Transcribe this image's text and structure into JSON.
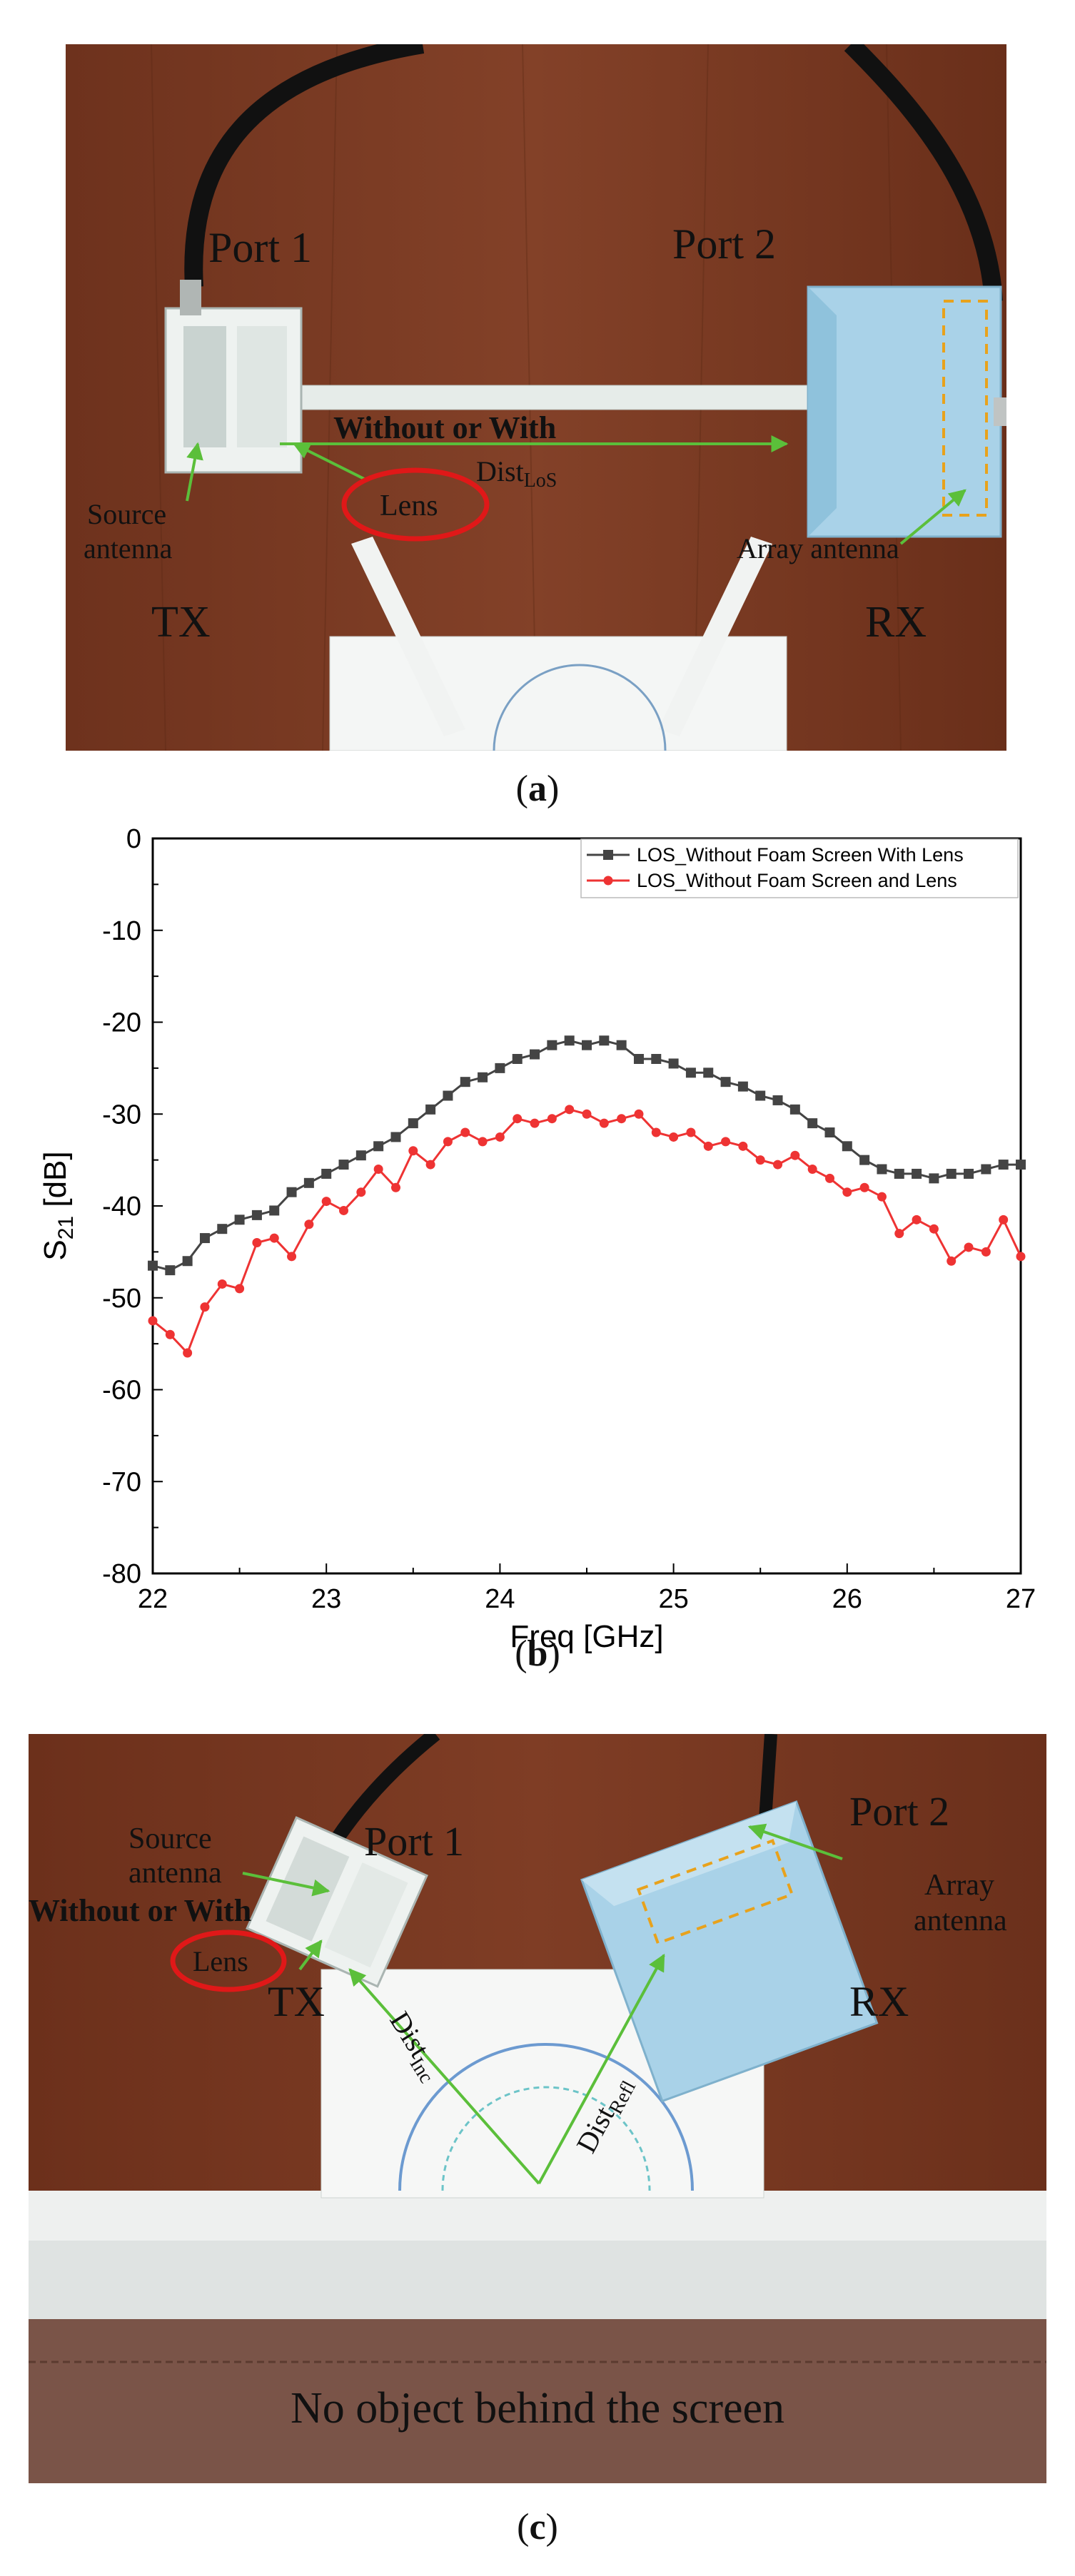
{
  "panel_a": {
    "caption_open": "(",
    "caption_letter": "a",
    "caption_close": ")",
    "labels": {
      "port1": "Port 1",
      "port2": "Port 2",
      "without_or_with": "Without or With",
      "dist_main": "Dist",
      "dist_sub": "LoS",
      "source1": "Source",
      "source2": "antenna",
      "lens": "Lens",
      "array": "Array antenna",
      "tx": "TX",
      "rx": "RX"
    },
    "colors": {
      "wood": "#7a3b22",
      "arrow": "#5bbf3a",
      "lens_ring": "#e01818",
      "dashed": "#e8a21c"
    }
  },
  "panel_b": {
    "caption_open": "(",
    "caption_letter": "b",
    "caption_close": ")"
  },
  "panel_c": {
    "caption_open": "(",
    "caption_letter": "c",
    "caption_close": ")",
    "labels": {
      "port1": "Port 1",
      "port2": "Port 2",
      "source1": "Source",
      "source2": "antenna",
      "without_or_with": "Without or With",
      "lens": "Lens",
      "tx": "TX",
      "rx": "RX",
      "array1": "Array",
      "array2": "antenna",
      "dist_inc": "Dist",
      "dist_inc_sub": "Inc",
      "dist_refl": "Dist",
      "dist_refl_sub": "Refl",
      "screen_note": "No object behind the screen"
    }
  },
  "chart_data": {
    "type": "line",
    "title": "",
    "xlabel": "Freq [GHz]",
    "ylabel_main": "S",
    "ylabel_sub": "21",
    "ylabel_unit": " [dB]",
    "xlim": [
      22,
      27
    ],
    "ylim": [
      -80,
      0
    ],
    "xticks": [
      22,
      23,
      24,
      25,
      26,
      27
    ],
    "yticks": [
      0,
      -10,
      -20,
      -30,
      -40,
      -50,
      -60,
      -70,
      -80
    ],
    "legend_position": "top-right",
    "series": [
      {
        "name": "LOS_Without Foam Screen With Lens",
        "color": "#444444",
        "marker": "square",
        "x": [
          22.0,
          22.1,
          22.2,
          22.3,
          22.4,
          22.5,
          22.6,
          22.7,
          22.8,
          22.9,
          23.0,
          23.1,
          23.2,
          23.3,
          23.4,
          23.5,
          23.6,
          23.7,
          23.8,
          23.9,
          24.0,
          24.1,
          24.2,
          24.3,
          24.4,
          24.5,
          24.6,
          24.7,
          24.8,
          24.9,
          25.0,
          25.1,
          25.2,
          25.3,
          25.4,
          25.5,
          25.6,
          25.7,
          25.8,
          25.9,
          26.0,
          26.1,
          26.2,
          26.3,
          26.4,
          26.5,
          26.6,
          26.7,
          26.8,
          26.9,
          27.0
        ],
        "y": [
          -46.5,
          -47.0,
          -46.0,
          -43.5,
          -42.5,
          -41.5,
          -41.0,
          -40.5,
          -38.5,
          -37.5,
          -36.5,
          -35.5,
          -34.5,
          -33.5,
          -32.5,
          -31.0,
          -29.5,
          -28.0,
          -26.5,
          -26.0,
          -25.0,
          -24.0,
          -23.5,
          -22.5,
          -22.0,
          -22.5,
          -22.0,
          -22.5,
          -24.0,
          -24.0,
          -24.5,
          -25.5,
          -25.5,
          -26.5,
          -27.0,
          -28.0,
          -28.5,
          -29.5,
          -31.0,
          -32.0,
          -33.5,
          -35.0,
          -36.0,
          -36.5,
          -36.5,
          -37.0,
          -36.5,
          -36.5,
          -36.0,
          -35.5,
          -35.5
        ]
      },
      {
        "name": "LOS_Without Foam Screen and Lens",
        "color": "#ee3333",
        "marker": "circle",
        "x": [
          22.0,
          22.1,
          22.2,
          22.3,
          22.4,
          22.5,
          22.6,
          22.7,
          22.8,
          22.9,
          23.0,
          23.1,
          23.2,
          23.3,
          23.4,
          23.5,
          23.6,
          23.7,
          23.8,
          23.9,
          24.0,
          24.1,
          24.2,
          24.3,
          24.4,
          24.5,
          24.6,
          24.7,
          24.8,
          24.9,
          25.0,
          25.1,
          25.2,
          25.3,
          25.4,
          25.5,
          25.6,
          25.7,
          25.8,
          25.9,
          26.0,
          26.1,
          26.2,
          26.3,
          26.4,
          26.5,
          26.6,
          26.7,
          26.8,
          26.9,
          27.0
        ],
        "y": [
          -52.5,
          -54.0,
          -56.0,
          -51.0,
          -48.5,
          -49.0,
          -44.0,
          -43.5,
          -45.5,
          -42.0,
          -39.5,
          -40.5,
          -38.5,
          -36.0,
          -38.0,
          -34.0,
          -35.5,
          -33.0,
          -32.0,
          -33.0,
          -32.5,
          -30.5,
          -31.0,
          -30.5,
          -29.5,
          -30.0,
          -31.0,
          -30.5,
          -30.0,
          -32.0,
          -32.5,
          -32.0,
          -33.5,
          -33.0,
          -33.5,
          -35.0,
          -35.5,
          -34.5,
          -36.0,
          -37.0,
          -38.5,
          -38.0,
          -39.0,
          -43.0,
          -41.5,
          -42.5,
          -46.0,
          -44.5,
          -45.0,
          -41.5,
          -45.5
        ]
      }
    ]
  }
}
